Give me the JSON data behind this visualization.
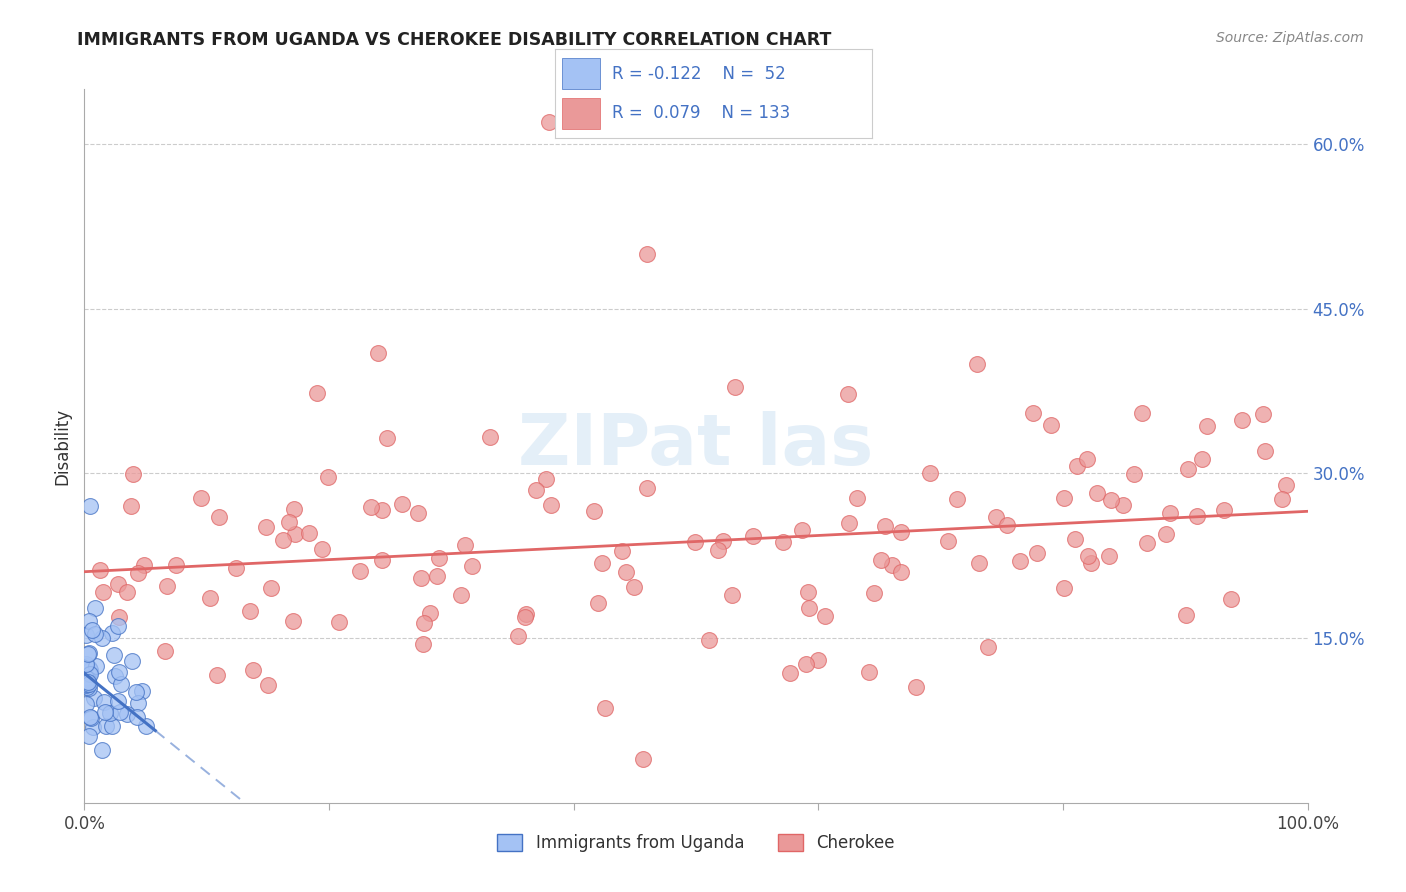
{
  "title": "IMMIGRANTS FROM UGANDA VS CHEROKEE DISABILITY CORRELATION CHART",
  "source": "Source: ZipAtlas.com",
  "ylabel": "Disability",
  "xlim": [
    0.0,
    1.0
  ],
  "ylim": [
    0.0,
    0.65
  ],
  "x_tick_labels": [
    "0.0%",
    "",
    "",
    "",
    "",
    "100.0%"
  ],
  "y_ticks": [
    0.15,
    0.3,
    0.45,
    0.6
  ],
  "y_tick_labels": [
    "15.0%",
    "30.0%",
    "45.0%",
    "60.0%"
  ],
  "color_uganda": "#a4c2f4",
  "color_cherokee": "#ea9999",
  "color_uganda_dark": "#4472c4",
  "color_cherokee_dark": "#e06666",
  "color_right_axis": "#4472c4",
  "color_grid": "#cccccc",
  "watermark_color": "#cfe2f3",
  "legend_text_color": "#4472c4",
  "slope_cherokee": 0.055,
  "intercept_cherokee": 0.2105,
  "slope_uganda": -0.9,
  "intercept_uganda": 0.118,
  "uganda_line_solid_end": 0.058
}
